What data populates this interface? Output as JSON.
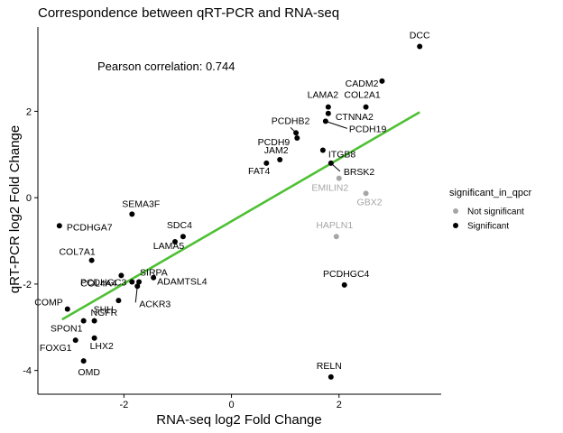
{
  "chart_data": {
    "type": "scatter",
    "title": "Correspondence between qRT-PCR and RNA-seq",
    "xlabel": "RNA-seq log2 Fold Change",
    "ylabel": "qRT-PCR log2 Fold Change",
    "xlim": [
      -3.6,
      3.9
    ],
    "ylim": [
      -4.55,
      3.95
    ],
    "x_ticks": [
      -2,
      0,
      2
    ],
    "y_ticks": [
      -4,
      -2,
      0,
      2
    ],
    "grid": false,
    "annotation": "Pearson correlation: 0.744",
    "legend": {
      "title": "significant_in_qpcr",
      "position": "right",
      "entries": [
        {
          "label": "Not significant",
          "color": "#a6a6a6"
        },
        {
          "label": "Significant",
          "color": "#000000"
        }
      ]
    },
    "colors": {
      "significant": "#000000",
      "not_significant": "#a6a6a6",
      "trend_line": "#4ec034"
    },
    "trend_line": {
      "x": [
        -3.15,
        3.5
      ],
      "y": [
        -2.82,
        1.98
      ]
    },
    "points": [
      {
        "label": "DCC",
        "x": 3.5,
        "y": 3.5,
        "significant": true
      },
      {
        "label": "CADM2",
        "x": 2.8,
        "y": 2.7,
        "significant": true
      },
      {
        "label": "LAMA2",
        "x": 1.8,
        "y": 2.1,
        "significant": true
      },
      {
        "label": "COL2A1",
        "x": 2.5,
        "y": 2.1,
        "significant": true
      },
      {
        "label": "CTNNA2",
        "x": 1.8,
        "y": 1.95,
        "significant": true
      },
      {
        "label": "PCDH19",
        "x": 1.75,
        "y": 1.77,
        "significant": true
      },
      {
        "label": "PCDHB2",
        "x": 1.2,
        "y": 1.5,
        "significant": true
      },
      {
        "label": "PCDH9",
        "x": 1.22,
        "y": 1.38,
        "significant": true
      },
      {
        "label": "JAM2",
        "x": 0.9,
        "y": 0.88,
        "significant": true
      },
      {
        "label": "ITGB8",
        "x": 1.7,
        "y": 1.1,
        "significant": true
      },
      {
        "label": "FAT4",
        "x": 0.65,
        "y": 0.8,
        "significant": true
      },
      {
        "label": "BRSK2",
        "x": 1.85,
        "y": 0.8,
        "significant": true
      },
      {
        "label": "EMILIN2",
        "x": 2.0,
        "y": 0.45,
        "significant": false
      },
      {
        "label": "GBX2",
        "x": 2.5,
        "y": 0.1,
        "significant": false
      },
      {
        "label": "HAPLN1",
        "x": 1.95,
        "y": -0.9,
        "significant": false
      },
      {
        "label": "SEMA3F",
        "x": -1.85,
        "y": -0.38,
        "significant": true
      },
      {
        "label": "PCDHGA7",
        "x": -3.2,
        "y": -0.65,
        "significant": true
      },
      {
        "label": "SDC4",
        "x": -0.9,
        "y": -0.9,
        "significant": true
      },
      {
        "label": "LAMA5",
        "x": -1.05,
        "y": -1.02,
        "significant": true
      },
      {
        "label": "COL7A1",
        "x": -2.6,
        "y": -1.45,
        "significant": true
      },
      {
        "label": "COL4A4",
        "x": -2.05,
        "y": -1.8,
        "significant": true
      },
      {
        "label": "SIRPA",
        "x": -1.72,
        "y": -1.95,
        "significant": true
      },
      {
        "label": "ADAMTSL4",
        "x": -1.45,
        "y": -1.85,
        "significant": true
      },
      {
        "label": "PCDHGC3",
        "x": -1.85,
        "y": -1.95,
        "significant": true
      },
      {
        "label": "ACKR3",
        "x": -1.75,
        "y": -2.05,
        "significant": true
      },
      {
        "label": "NGFR",
        "x": -2.1,
        "y": -2.38,
        "significant": true
      },
      {
        "label": "PCDHGC4",
        "x": 2.1,
        "y": -2.02,
        "significant": true
      },
      {
        "label": "COMP",
        "x": -3.05,
        "y": -2.58,
        "significant": true
      },
      {
        "label": "SPON1",
        "x": -2.75,
        "y": -2.85,
        "significant": true
      },
      {
        "label": "SHH",
        "x": -2.55,
        "y": -2.85,
        "significant": true
      },
      {
        "label": "FOXG1",
        "x": -2.9,
        "y": -3.3,
        "significant": true
      },
      {
        "label": "LHX2",
        "x": -2.55,
        "y": -3.25,
        "significant": true
      },
      {
        "label": "OMD",
        "x": -2.75,
        "y": -3.78,
        "significant": true
      },
      {
        "label": "RELN",
        "x": 1.85,
        "y": -4.15,
        "significant": true
      }
    ]
  }
}
